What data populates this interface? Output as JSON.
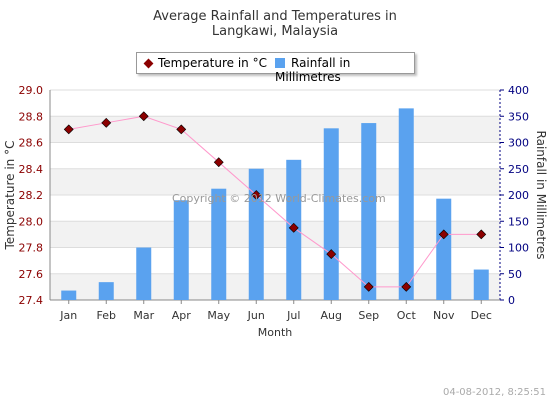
{
  "title_line1": "Average Rainfall and Temperatures in",
  "title_line2": "Langkawi, Malaysia",
  "watermark": "Copyright © 2012 World-Climates.com",
  "timestamp": "04-08-2012, 8:25:51",
  "colors": {
    "temperature": "#8b0000",
    "temperature_line": "#ff99cc",
    "rainfall": "#5aa2ef",
    "left_axis": "#8b0000",
    "right_axis": "#000080"
  },
  "chart_data": {
    "type": "bar",
    "xlabel": "Month",
    "categories": [
      "Jan",
      "Feb",
      "Mar",
      "Apr",
      "May",
      "Jun",
      "Jul",
      "Aug",
      "Sep",
      "Oct",
      "Nov",
      "Dec"
    ],
    "series": [
      {
        "name": "Temperature in °C",
        "type": "line",
        "axis": "left",
        "values": [
          28.7,
          28.75,
          28.8,
          28.7,
          28.45,
          28.2,
          27.95,
          27.75,
          27.5,
          27.5,
          27.9,
          27.9
        ]
      },
      {
        "name": "Rainfall in Millimetres",
        "type": "bar",
        "axis": "right",
        "values": [
          18,
          34,
          100,
          190,
          212,
          250,
          267,
          327,
          337,
          365,
          193,
          58
        ]
      }
    ],
    "left_axis": {
      "label": "Temperature in °C",
      "min": 27.4,
      "max": 29.0,
      "ticks": [
        "27.4",
        "27.6",
        "27.8",
        "28.0",
        "28.2",
        "28.4",
        "28.6",
        "28.8",
        "29.0"
      ]
    },
    "right_axis": {
      "label": "Rainfall in Millimetres",
      "min": 0,
      "max": 400,
      "ticks": [
        "0",
        "50",
        "100",
        "150",
        "200",
        "250",
        "300",
        "350",
        "400"
      ]
    },
    "grid": true,
    "legend": "top-center"
  }
}
